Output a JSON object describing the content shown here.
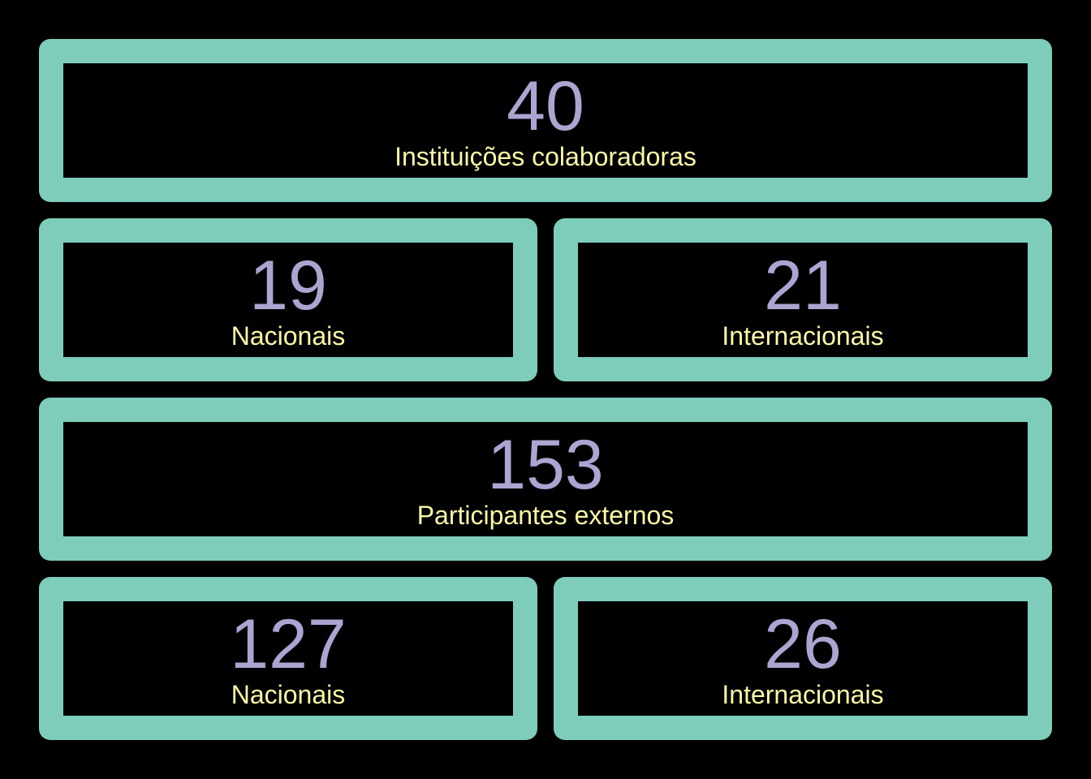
{
  "colors": {
    "background": "#000000",
    "card_border": "#7ECDBB",
    "value_text": "#AAA5D1",
    "label_text": "#FBF7A6"
  },
  "institutions": {
    "total": {
      "value": "40",
      "label": "Instituições colaboradoras"
    },
    "national": {
      "value": "19",
      "label": "Nacionais"
    },
    "international": {
      "value": "21",
      "label": "Internacionais"
    }
  },
  "participants": {
    "total": {
      "value": "153",
      "label": "Participantes externos"
    },
    "national": {
      "value": "127",
      "label": "Nacionais"
    },
    "international": {
      "value": "26",
      "label": "Internacionais"
    }
  }
}
